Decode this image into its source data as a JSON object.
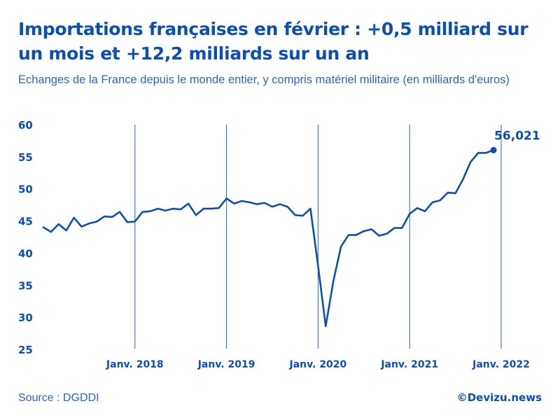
{
  "title": "Importations françaises en février : +0,5 milliard sur un mois et +12,2 milliards sur un an",
  "subtitle": "Echanges de la France depuis le monde entier, y compris matériel militaire (en milliards d'euros)",
  "source": "Source : DGDDI",
  "brand": "©Devizu.news",
  "colors": {
    "line": "#0b4fb5",
    "text": "#0b4fb5",
    "subtitle": "#2a66c0",
    "vline": "#2b5fb8"
  },
  "chart_data": {
    "type": "line",
    "title": "Importations françaises en février : +0,5 milliard sur un mois et +12,2 milliards sur un an",
    "ylabel": "",
    "ylim": [
      25,
      60
    ],
    "yticks": [
      25,
      30,
      35,
      40,
      45,
      50,
      55,
      60
    ],
    "ytick_labels": [
      "25",
      "30",
      "35",
      "40",
      "45",
      "50",
      "55",
      "60"
    ],
    "grid": "vertical lines at January of each year",
    "x": [
      "2017-01",
      "2017-02",
      "2017-03",
      "2017-04",
      "2017-05",
      "2017-06",
      "2017-07",
      "2017-08",
      "2017-09",
      "2017-10",
      "2017-11",
      "2017-12",
      "2018-01",
      "2018-02",
      "2018-03",
      "2018-04",
      "2018-05",
      "2018-06",
      "2018-07",
      "2018-08",
      "2018-09",
      "2018-10",
      "2018-11",
      "2018-12",
      "2019-01",
      "2019-02",
      "2019-03",
      "2019-04",
      "2019-05",
      "2019-06",
      "2019-07",
      "2019-08",
      "2019-09",
      "2019-10",
      "2019-11",
      "2019-12",
      "2020-01",
      "2020-02",
      "2020-03",
      "2020-04",
      "2020-05",
      "2020-06",
      "2020-07",
      "2020-08",
      "2020-09",
      "2020-10",
      "2020-11",
      "2020-12",
      "2021-01",
      "2021-02",
      "2021-03",
      "2021-04",
      "2021-05",
      "2021-06",
      "2021-07",
      "2021-08",
      "2021-09",
      "2021-10",
      "2021-11",
      "2021-12",
      "2022-01",
      "2022-02"
    ],
    "values": [
      44.0,
      43.3,
      44.5,
      43.5,
      45.5,
      44.1,
      44.6,
      44.9,
      45.7,
      45.6,
      46.4,
      44.8,
      44.9,
      46.4,
      46.5,
      46.9,
      46.6,
      46.9,
      46.8,
      47.7,
      45.9,
      46.9,
      46.9,
      47.0,
      48.5,
      47.7,
      48.1,
      47.9,
      47.6,
      47.8,
      47.2,
      47.6,
      47.2,
      45.9,
      45.8,
      46.9,
      38.0,
      28.6,
      35.6,
      41.0,
      42.8,
      42.8,
      43.4,
      43.7,
      42.7,
      43.0,
      43.9,
      43.9,
      46.1,
      47.0,
      46.5,
      47.9,
      48.2,
      49.4,
      49.3,
      51.5,
      54.2,
      55.6,
      55.6,
      56.021,
      null,
      null
    ],
    "x_tick_labels": [
      {
        "x": "2018-01",
        "label": "Janv. 2018"
      },
      {
        "x": "2019-01",
        "label": "Janv. 2019"
      },
      {
        "x": "2020-01",
        "label": "Janv. 2020"
      },
      {
        "x": "2021-01",
        "label": "Janv. 2021"
      },
      {
        "x": "2022-01",
        "label": "Janv. 2022"
      }
    ],
    "annotation": {
      "label": "56,021",
      "value": 56.021
    }
  }
}
